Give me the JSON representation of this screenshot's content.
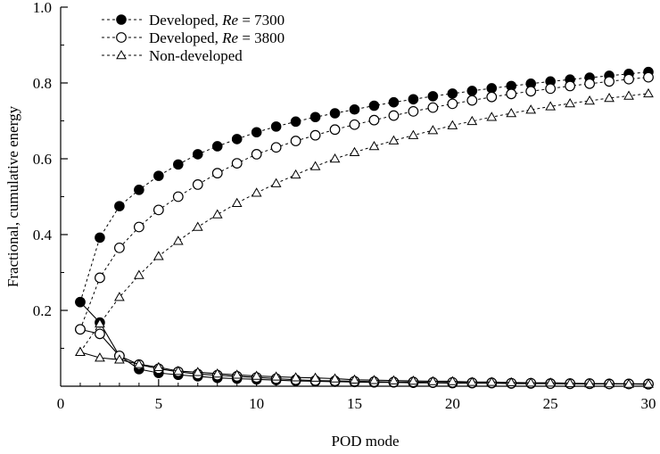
{
  "chart_data": {
    "type": "line",
    "xlabel": "POD mode",
    "ylabel": "Fractional, cumulative energy",
    "xlim": [
      0,
      30
    ],
    "ylim": [
      0,
      1.0
    ],
    "xticks": [
      0,
      5,
      10,
      15,
      20,
      25,
      30
    ],
    "yticks": [
      0.2,
      0.4,
      0.6,
      0.8,
      1.0
    ],
    "xtick_labels": [
      "0",
      "5",
      "10",
      "15",
      "20",
      "25",
      "30"
    ],
    "ytick_labels": [
      "0.2",
      "0.4",
      "0.6",
      "0.8",
      "1.0"
    ],
    "grid": false,
    "legend_position": "top-left",
    "series": [
      {
        "name": "Developed, Re = 7300",
        "legend_prefix": "Developed, ",
        "legend_italic": "Re",
        "legend_suffix": " = 7300",
        "marker": "filled-circle",
        "color": "#000000",
        "x": [
          1,
          2,
          3,
          4,
          5,
          6,
          7,
          8,
          9,
          10,
          11,
          12,
          13,
          14,
          15,
          16,
          17,
          18,
          19,
          20,
          21,
          22,
          23,
          24,
          25,
          26,
          27,
          28,
          29,
          30
        ],
        "cumulative": [
          0.222,
          0.392,
          0.475,
          0.518,
          0.555,
          0.585,
          0.612,
          0.633,
          0.652,
          0.67,
          0.685,
          0.698,
          0.71,
          0.72,
          0.73,
          0.74,
          0.749,
          0.757,
          0.765,
          0.772,
          0.779,
          0.786,
          0.792,
          0.798,
          0.804,
          0.809,
          0.814,
          0.819,
          0.824,
          0.829
        ],
        "individual": [
          0.222,
          0.168,
          0.08,
          0.045,
          0.035,
          0.03,
          0.026,
          0.022,
          0.02,
          0.018,
          0.016,
          0.014,
          0.013,
          0.012,
          0.011,
          0.01,
          0.01,
          0.009,
          0.009,
          0.008,
          0.008,
          0.008,
          0.007,
          0.007,
          0.007,
          0.006,
          0.006,
          0.006,
          0.006,
          0.005
        ]
      },
      {
        "name": "Developed, Re = 3800",
        "legend_prefix": "Developed, ",
        "legend_italic": "Re",
        "legend_suffix": " = 3800",
        "marker": "open-circle",
        "color": "#000000",
        "x": [
          1,
          2,
          3,
          4,
          5,
          6,
          7,
          8,
          9,
          10,
          11,
          12,
          13,
          14,
          15,
          16,
          17,
          18,
          19,
          20,
          21,
          22,
          23,
          24,
          25,
          26,
          27,
          28,
          29,
          30
        ],
        "cumulative": [
          0.15,
          0.286,
          0.365,
          0.42,
          0.465,
          0.5,
          0.532,
          0.562,
          0.588,
          0.612,
          0.63,
          0.647,
          0.662,
          0.677,
          0.69,
          0.702,
          0.714,
          0.725,
          0.735,
          0.745,
          0.754,
          0.763,
          0.771,
          0.778,
          0.785,
          0.792,
          0.798,
          0.804,
          0.81,
          0.815
        ],
        "individual": [
          0.15,
          0.138,
          0.08,
          0.057,
          0.046,
          0.038,
          0.032,
          0.029,
          0.026,
          0.023,
          0.02,
          0.017,
          0.015,
          0.014,
          0.013,
          0.012,
          0.011,
          0.011,
          0.01,
          0.01,
          0.009,
          0.009,
          0.008,
          0.008,
          0.007,
          0.007,
          0.007,
          0.006,
          0.006,
          0.006
        ]
      },
      {
        "name": "Non-developed",
        "legend_prefix": "Non-developed",
        "legend_italic": "",
        "legend_suffix": "",
        "marker": "open-triangle",
        "color": "#000000",
        "x": [
          1,
          2,
          3,
          4,
          5,
          6,
          7,
          8,
          9,
          10,
          11,
          12,
          13,
          14,
          15,
          16,
          17,
          18,
          19,
          20,
          21,
          22,
          23,
          24,
          25,
          26,
          27,
          28,
          29,
          30
        ],
        "cumulative": [
          0.09,
          0.165,
          0.235,
          0.293,
          0.343,
          0.383,
          0.42,
          0.453,
          0.483,
          0.51,
          0.535,
          0.558,
          0.58,
          0.6,
          0.617,
          0.633,
          0.648,
          0.662,
          0.675,
          0.688,
          0.699,
          0.71,
          0.72,
          0.729,
          0.738,
          0.746,
          0.753,
          0.76,
          0.766,
          0.772
        ],
        "individual": [
          0.09,
          0.075,
          0.07,
          0.058,
          0.05,
          0.04,
          0.037,
          0.033,
          0.03,
          0.027,
          0.025,
          0.023,
          0.022,
          0.02,
          0.017,
          0.016,
          0.015,
          0.014,
          0.013,
          0.013,
          0.011,
          0.011,
          0.01,
          0.009,
          0.009,
          0.008,
          0.007,
          0.007,
          0.006,
          0.006
        ]
      }
    ]
  }
}
